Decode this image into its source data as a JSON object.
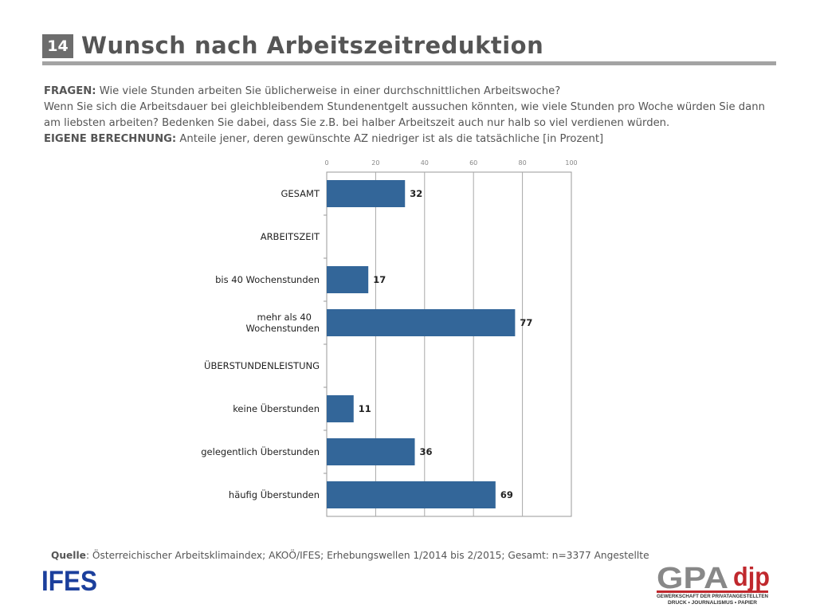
{
  "slide": {
    "number": "14",
    "title": "Wunsch nach Arbeitszeitreduktion"
  },
  "question": {
    "fragen_label": "FRAGEN:",
    "line1": "Wie viele Stunden arbeiten Sie üblicherweise in einer durchschnittlichen Arbeitswoche?",
    "line2": "Wenn Sie sich die Arbeitsdauer bei gleichbleibendem Stundenentgelt aussuchen könnten, wie viele Stunden pro Woche würden Sie dann am liebsten arbeiten? Bedenken Sie dabei, dass Sie z.B. bei halber Arbeitszeit auch nur halb so viel verdienen würden.",
    "eigene_label": "EIGENE BERECHNUNG:",
    "line3": "Anteile jener, deren gewünschte AZ niedriger ist als die tatsächliche [in Prozent]"
  },
  "chart_data": {
    "type": "bar",
    "orientation": "horizontal",
    "categories": [
      "GESAMT",
      "ARBEITSZEIT",
      "bis 40 Wochenstunden",
      "mehr als 40 Wochenstunden",
      "ÜBERSTUNDENLEISTUNG",
      "keine Überstunden",
      "gelegentlich Überstunden",
      "häufig Überstunden"
    ],
    "category_label_lines": [
      [
        "GESAMT"
      ],
      [
        "ARBEITSZEIT"
      ],
      [
        "bis 40 Wochenstunden"
      ],
      [
        "mehr als 40",
        "Wochenstunden"
      ],
      [
        "ÜBERSTUNDENLEISTUNG"
      ],
      [
        "keine Überstunden"
      ],
      [
        "gelegentlich Überstunden"
      ],
      [
        "häufig Überstunden"
      ]
    ],
    "values": [
      32,
      null,
      17,
      77,
      null,
      11,
      36,
      69
    ],
    "xlim": [
      0,
      100
    ],
    "xticks": [
      0,
      20,
      40,
      60,
      80,
      100
    ],
    "axis_position": "top",
    "grid": true,
    "bar_color": "#336699"
  },
  "footer": {
    "source_label": "Quelle",
    "source_text": ": Österreichischer Arbeitsklimaindex; AKOÖ/IFES; Erhebungswellen 1/2014 bis 2/2015;    Gesamt: n=3377 Angestellte",
    "ifes_logo_text": "IFES",
    "gpa_logo_text": "GPA",
    "djp_logo_text": "djp",
    "gpa_subline1": "GEWERKSCHAFT DER PRIVATANGESTELLTEN",
    "gpa_subline2": "DRUCK • JOURNALISMUS • PAPIER"
  }
}
